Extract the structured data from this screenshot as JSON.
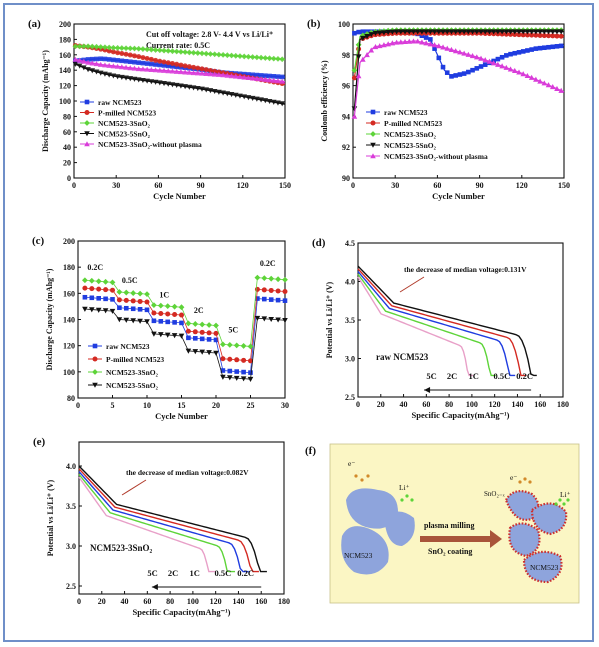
{
  "chart_data": [
    {
      "id": "a",
      "panel_label": "(a)",
      "type": "line",
      "annotations": [
        "Cut off voltage:  2.8 V- 4.4 V vs Li/Li⁺",
        "Current rate:  0.5C"
      ],
      "xlabel": "Cycle Number",
      "ylabel": "Discharge Capacity (mAhg⁻¹)",
      "xlim": [
        0,
        150
      ],
      "ylim": [
        0,
        200
      ],
      "xticks": [
        0,
        30,
        60,
        90,
        120,
        150
      ],
      "yticks": [
        0,
        20,
        40,
        60,
        80,
        100,
        120,
        140,
        160,
        180,
        200
      ],
      "legend_position": "bottom-left",
      "series": [
        {
          "name": "raw NCM523",
          "color": "#1f3ce0",
          "x": [
            1,
            10,
            20,
            30,
            45,
            60,
            75,
            90,
            105,
            120,
            135,
            150
          ],
          "y": [
            152,
            154,
            155,
            153,
            150,
            147,
            144,
            141,
            137,
            135,
            133,
            131
          ]
        },
        {
          "name": "P-milled NCM523",
          "color": "#d42a22",
          "x": [
            1,
            10,
            20,
            30,
            45,
            60,
            75,
            90,
            105,
            120,
            135,
            150
          ],
          "y": [
            172,
            170,
            167,
            163,
            158,
            152,
            147,
            142,
            137,
            132,
            127,
            122
          ]
        },
        {
          "name": "NCM523-3SnO₂",
          "color": "#5ed439",
          "x": [
            1,
            10,
            20,
            30,
            45,
            60,
            75,
            90,
            105,
            120,
            135,
            150
          ],
          "y": [
            171,
            171,
            170,
            169,
            168,
            166,
            164,
            162,
            160,
            158,
            156,
            154
          ]
        },
        {
          "name": "NCM523-5SnO₂",
          "color": "#111111",
          "x": [
            1,
            10,
            20,
            30,
            45,
            60,
            75,
            90,
            105,
            120,
            135,
            150
          ],
          "y": [
            148,
            141,
            136,
            132,
            128,
            124,
            120,
            116,
            111,
            106,
            101,
            96
          ]
        },
        {
          "name": "NCM523-3SnO₂-without plasma",
          "color": "#d93cd9",
          "x": [
            1,
            10,
            20,
            30,
            45,
            60,
            75,
            90,
            105,
            120,
            135,
            150
          ],
          "y": [
            154,
            150,
            147,
            145,
            142,
            140,
            138,
            136,
            134,
            131,
            128,
            125
          ]
        }
      ]
    },
    {
      "id": "b",
      "panel_label": "(b)",
      "type": "line",
      "xlabel": "Cycle Number",
      "ylabel": "Coulomb efficiency  (%)",
      "xlim": [
        0,
        150
      ],
      "ylim": [
        90,
        100
      ],
      "xticks": [
        0,
        30,
        60,
        90,
        120,
        150
      ],
      "yticks": [
        90,
        92,
        94,
        96,
        98,
        100
      ],
      "legend_position": "bottom-left",
      "series": [
        {
          "name": "raw NCM523",
          "color": "#1f3ce0",
          "x": [
            1,
            5,
            15,
            30,
            45,
            55,
            60,
            65,
            70,
            80,
            90,
            100,
            110,
            120,
            130,
            140,
            150
          ],
          "y": [
            99.4,
            99.5,
            99.5,
            99.5,
            99.4,
            99.0,
            98.0,
            97.0,
            96.6,
            96.8,
            97.2,
            97.6,
            98.0,
            98.2,
            98.4,
            98.5,
            98.6
          ]
        },
        {
          "name": "P-milled NCM523",
          "color": "#d42a22",
          "x": [
            1,
            5,
            15,
            30,
            60,
            90,
            120,
            150
          ],
          "y": [
            96.5,
            99.0,
            99.3,
            99.4,
            99.4,
            99.4,
            99.3,
            99.2
          ]
        },
        {
          "name": "NCM523-3SnO₂",
          "color": "#5ed439",
          "x": [
            1,
            5,
            15,
            30,
            60,
            90,
            120,
            150
          ],
          "y": [
            97.0,
            99.2,
            99.5,
            99.6,
            99.6,
            99.6,
            99.6,
            99.6
          ]
        },
        {
          "name": "NCM523-5SnO₂",
          "color": "#111111",
          "x": [
            1,
            5,
            15,
            30,
            60,
            90,
            120,
            150
          ],
          "y": [
            94.5,
            99.0,
            99.4,
            99.5,
            99.5,
            99.5,
            99.5,
            99.5
          ]
        },
        {
          "name": "NCM523-3SnO₂-without plasma",
          "color": "#d93cd9",
          "x": [
            1,
            5,
            15,
            30,
            45,
            60,
            75,
            90,
            105,
            120,
            135,
            150
          ],
          "y": [
            94.0,
            97.5,
            98.5,
            98.8,
            98.9,
            98.6,
            98.2,
            97.8,
            97.3,
            96.8,
            96.2,
            95.6
          ]
        }
      ]
    },
    {
      "id": "c",
      "panel_label": "(c)",
      "type": "scatter",
      "xlabel": "Cycle Number",
      "ylabel": "Discharge Capacity (mAhg⁻¹)",
      "xlim": [
        0,
        30
      ],
      "ylim": [
        80,
        200
      ],
      "xticks": [
        0,
        5,
        10,
        15,
        20,
        25,
        30
      ],
      "yticks": [
        80,
        100,
        120,
        140,
        160,
        180,
        200
      ],
      "rate_labels": [
        {
          "text": "0.2C",
          "x": 2.5,
          "y": 178
        },
        {
          "text": "0.5C",
          "x": 7.5,
          "y": 168
        },
        {
          "text": "1C",
          "x": 12.5,
          "y": 157
        },
        {
          "text": "2C",
          "x": 17.5,
          "y": 145
        },
        {
          "text": "5C",
          "x": 22.5,
          "y": 130
        },
        {
          "text": "0.2C",
          "x": 27.5,
          "y": 181
        }
      ],
      "legend_position": "bottom-left",
      "series": [
        {
          "name": "raw NCM523",
          "color": "#1f3ce0",
          "steps": [
            157,
            149,
            139,
            126,
            101,
            156
          ]
        },
        {
          "name": "P-milled NCM523",
          "color": "#d42a22",
          "steps": [
            164,
            155,
            145,
            131,
            110,
            163
          ]
        },
        {
          "name": "NCM523-3SnO₂",
          "color": "#5ed439",
          "steps": [
            170,
            161,
            151,
            137,
            121,
            172
          ]
        },
        {
          "name": "NCM523-5SnO₂",
          "color": "#111111",
          "steps": [
            148,
            140,
            129,
            116,
            96,
            141
          ]
        }
      ]
    },
    {
      "id": "d",
      "panel_label": "(d)",
      "type": "line",
      "xlabel": "Specific Capacity(mAhg⁻¹)",
      "ylabel": "Potential vs Li/Li⁺  (V)",
      "xlim": [
        0,
        180
      ],
      "ylim": [
        2.5,
        4.5
      ],
      "xticks": [
        0,
        20,
        40,
        60,
        80,
        100,
        120,
        140,
        160,
        180
      ],
      "yticks": [
        2.5,
        3.0,
        3.5,
        4.0,
        4.5
      ],
      "annotation": "the decrease of median voltage:0.131V",
      "sample_label": "raw NCM523",
      "curve_labels": [
        "5C",
        "2C",
        "1C",
        "0.5C",
        "0.2C"
      ],
      "series": [
        {
          "name": "0.2C",
          "color": "#111111",
          "end_capacity": 157
        },
        {
          "name": "0.5C",
          "color": "#d42a22",
          "end_capacity": 148
        },
        {
          "name": "1C",
          "color": "#1f3ce0",
          "end_capacity": 138
        },
        {
          "name": "2C",
          "color": "#5ed439",
          "end_capacity": 121
        },
        {
          "name": "5C",
          "color": "#e8a0c8",
          "end_capacity": 101
        }
      ]
    },
    {
      "id": "e",
      "panel_label": "(e)",
      "type": "line",
      "xlabel": "Specific Capacity(mAhg⁻¹)",
      "ylabel": "Potential vs Li/Li⁺  (V)",
      "xlim": [
        0,
        180
      ],
      "ylim": [
        2.4,
        4.3
      ],
      "xticks": [
        0,
        20,
        40,
        60,
        80,
        100,
        120,
        140,
        160,
        180
      ],
      "yticks": [
        2.5,
        3.0,
        3.5,
        4.0
      ],
      "annotation": "the decrease of median voltage:0.082V",
      "sample_label": "NCM523-3SnO₂",
      "curve_labels": [
        "5C",
        "2C",
        "1C",
        "0.5C",
        "0.2C"
      ],
      "series": [
        {
          "name": "0.2C",
          "color": "#111111",
          "end_capacity": 165
        },
        {
          "name": "0.5C",
          "color": "#d42a22",
          "end_capacity": 158
        },
        {
          "name": "1C",
          "color": "#1f3ce0",
          "end_capacity": 149
        },
        {
          "name": "2C",
          "color": "#5ed439",
          "end_capacity": 137
        },
        {
          "name": "5C",
          "color": "#e8a0c8",
          "end_capacity": 120
        }
      ]
    }
  ],
  "schematic": {
    "panel_label": "(f)",
    "left_particle": "NCM523",
    "right_particle": "NCM523",
    "arrow_top": "plasma milling",
    "arrow_bottom": "SnO₂ coating",
    "coating_label": "SnO₂₋ₓ",
    "electron": "e⁻",
    "lithium": "Li⁺",
    "background": "#fbf6c4",
    "particle_color": "#8ea4dc",
    "coating_color": "#cc3030"
  }
}
